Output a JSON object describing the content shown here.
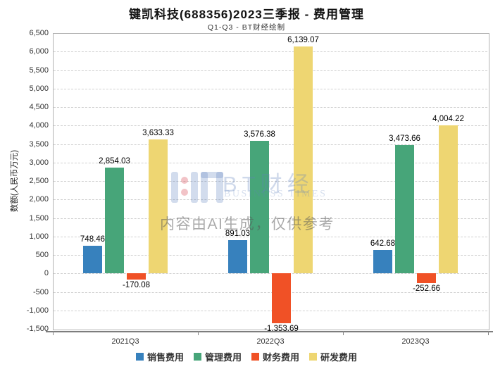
{
  "header": {
    "title": "键凯科技(688356)2023三季报 - 费用管理",
    "subtitle": "Q1-Q3 - BT财经绘制"
  },
  "watermark": {
    "brand": "BT财经",
    "brand_sub": "BUSINESS TIMES",
    "disclaimer": "内容由AI生成，仅供参考"
  },
  "chart_data": {
    "type": "bar",
    "title": "键凯科技(688356)2023三季报 - 费用管理",
    "subtitle": "Q1-Q3 - BT财经绘制",
    "categories": [
      "2021Q3",
      "2022Q3",
      "2023Q3"
    ],
    "series": [
      {
        "name": "销售费用",
        "color": "#3781bd",
        "values": [
          748.46,
          891.03,
          642.68
        ],
        "labels": [
          "748.46",
          "891.03",
          "642.68"
        ]
      },
      {
        "name": "管理费用",
        "color": "#47a579",
        "values": [
          2854.03,
          3576.38,
          3473.66
        ],
        "labels": [
          "2,854.03",
          "3,576.38",
          "3,473.66"
        ]
      },
      {
        "name": "财务费用",
        "color": "#f05126",
        "values": [
          -170.08,
          -1353.69,
          -252.66
        ],
        "labels": [
          "-170.08",
          "-1,353.69",
          "-252.66"
        ]
      },
      {
        "name": "研发费用",
        "color": "#eed672",
        "values": [
          3633.33,
          6139.07,
          4004.22
        ],
        "labels": [
          "3,633.33",
          "6,139.07",
          "4,004.22"
        ]
      }
    ],
    "xlabel": "",
    "ylabel": "数额(人民币万元)",
    "ylim": [
      -1500,
      6500
    ],
    "ytick_step": 500,
    "grid": true,
    "legend_position": "bottom"
  }
}
